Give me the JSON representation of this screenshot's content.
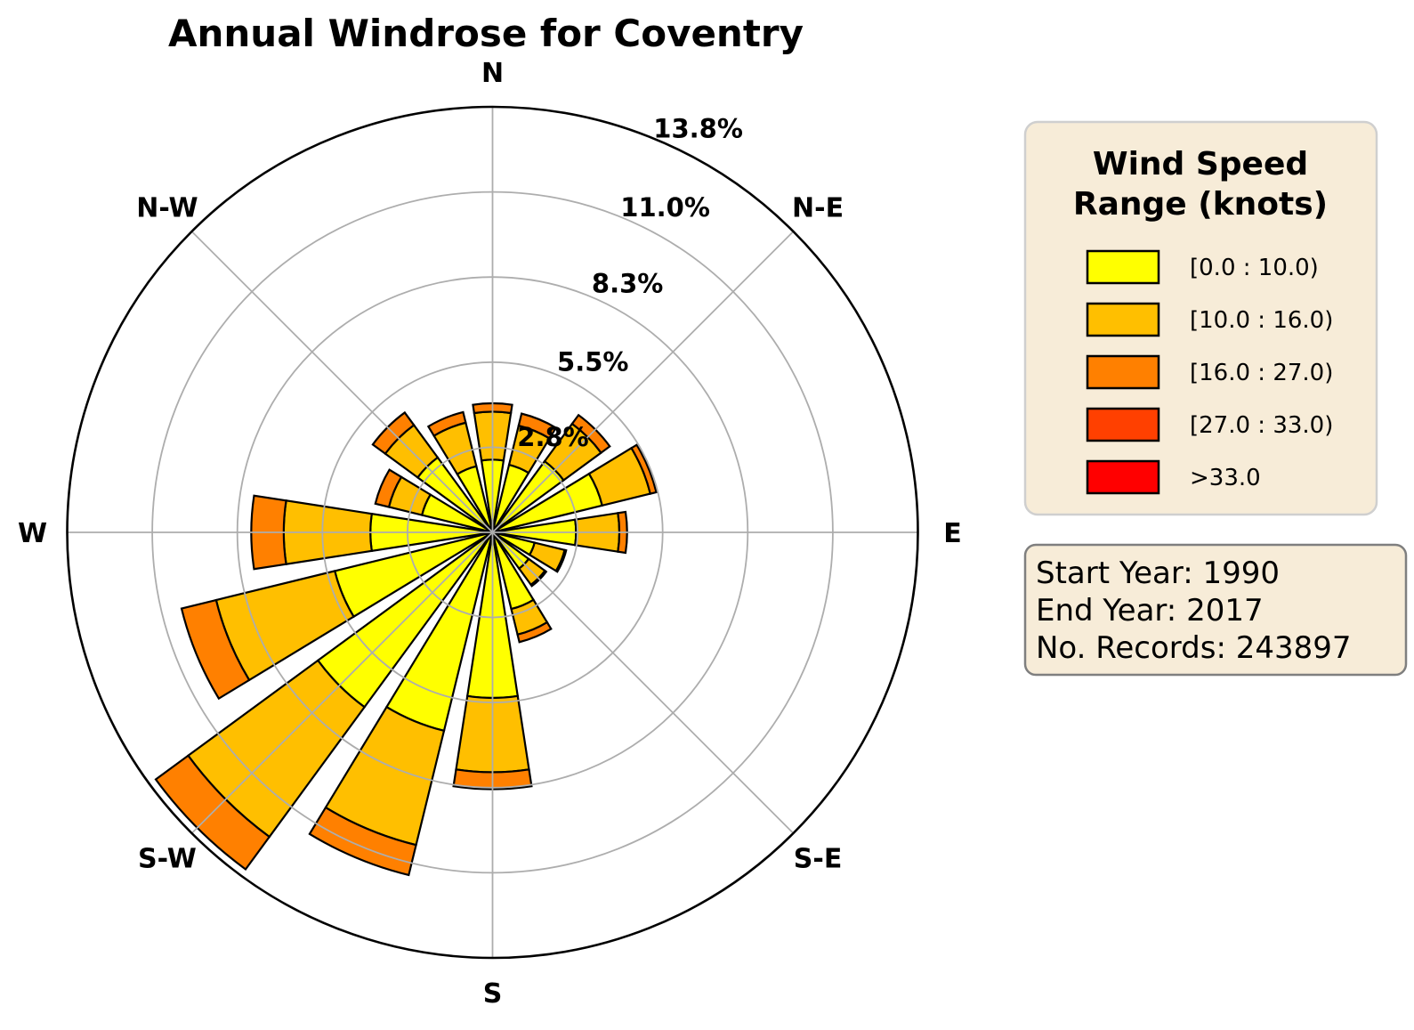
{
  "title": "Annual Windrose for Coventry",
  "chart_data": {
    "type": "windrose-polar-bar",
    "units": "percent of records",
    "directions": [
      "N",
      "NNE",
      "NE",
      "ENE",
      "E",
      "ESE",
      "SE",
      "SSE",
      "S",
      "SSW",
      "SW",
      "WSW",
      "W",
      "WNW",
      "NW",
      "NNW"
    ],
    "direction_angles_deg": [
      0,
      22.5,
      45,
      67.5,
      90,
      112.5,
      135,
      157.5,
      180,
      202.5,
      225,
      247.5,
      270,
      292.5,
      315,
      337.5
    ],
    "series": [
      {
        "name": "[0.0 : 10.0)",
        "color": "#FFFF00",
        "values": [
          2.35,
          2.25,
          2.85,
          3.65,
          2.7,
          1.4,
          1.45,
          2.55,
          5.35,
          6.6,
          7.0,
          5.25,
          3.95,
          2.35,
          3.0,
          2.2
        ]
      },
      {
        "name": "[10.0 : 16.0)",
        "color": "#FFBF00",
        "values": [
          1.55,
          1.3,
          1.5,
          1.6,
          1.4,
          1.0,
          0.65,
          0.85,
          2.4,
          3.8,
          5.2,
          3.95,
          2.8,
          1.1,
          1.3,
          1.45
        ]
      },
      {
        "name": "[16.0 : 27.0)",
        "color": "#FF8000",
        "values": [
          0.27,
          0.4,
          0.35,
          0.2,
          0.25,
          0.05,
          0.05,
          0.25,
          0.55,
          1.0,
          1.3,
          1.15,
          1.05,
          0.45,
          0.5,
          0.35
        ]
      },
      {
        "name": "[27.0 : 33.0)",
        "color": "#FF4000",
        "values": [
          0,
          0,
          0,
          0,
          0,
          0,
          0,
          0,
          0,
          0,
          0,
          0,
          0,
          0,
          0,
          0
        ]
      },
      {
        "name": ">33.0",
        "color": "#FF0000",
        "values": [
          0,
          0,
          0,
          0,
          0,
          0,
          0,
          0,
          0,
          0,
          0,
          0,
          0,
          0,
          0,
          0
        ]
      }
    ],
    "radial_ticks": [
      {
        "value": 2.75,
        "label": "2.8%",
        "label_angle_deg": 32.5
      },
      {
        "value": 5.5,
        "label": "5.5%",
        "label_angle_deg": 30.5
      },
      {
        "value": 8.25,
        "label": "8.3%",
        "label_angle_deg": 28.5
      },
      {
        "value": 11.0,
        "label": "11.0%",
        "label_angle_deg": 28.0
      },
      {
        "value": 13.75,
        "label": "13.8%",
        "label_angle_deg": 27.0
      }
    ],
    "rmax": 13.75,
    "grid": "on",
    "compass_labels": [
      {
        "label": "N",
        "angle_deg": 0
      },
      {
        "label": "N-E",
        "angle_deg": 45
      },
      {
        "label": "E",
        "angle_deg": 90
      },
      {
        "label": "S-E",
        "angle_deg": 135
      },
      {
        "label": "S",
        "angle_deg": 180
      },
      {
        "label": "S-W",
        "angle_deg": 225
      },
      {
        "label": "W",
        "angle_deg": 270
      },
      {
        "label": "N-W",
        "angle_deg": 315
      }
    ]
  },
  "legend": {
    "title_line1": "Wind Speed",
    "title_line2": "Range (knots)",
    "items": [
      {
        "label": "[0.0 : 10.0)",
        "color": "#FFFF00"
      },
      {
        "label": "[10.0 : 16.0)",
        "color": "#FFBF00"
      },
      {
        "label": "[16.0 : 27.0)",
        "color": "#FF8000"
      },
      {
        "label": "[27.0 : 33.0)",
        "color": "#FF4000"
      },
      {
        "label": ">33.0",
        "color": "#FF0000"
      }
    ],
    "panel_color": "#F7ECD8",
    "border_color": "#CFCFCF"
  },
  "info_box": {
    "lines": [
      "Start Year: 1990",
      "End Year: 2017",
      "No. Records: 243897"
    ],
    "panel_color": "#F7ECD8",
    "border_color": "#7F7F7F"
  },
  "style_colors": {
    "grid_gray": "#ADADAD",
    "outline_black": "#000000"
  }
}
